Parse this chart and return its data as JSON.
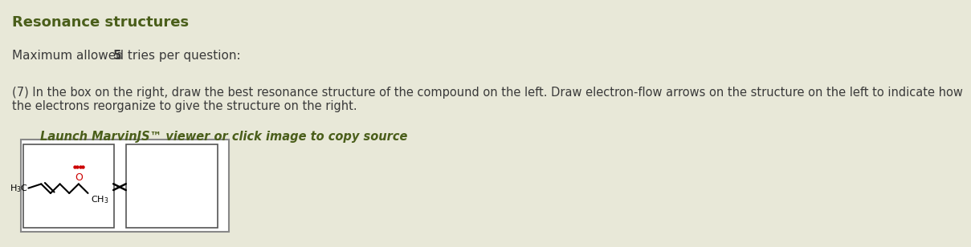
{
  "background_color": "#e8e8d8",
  "title": "Resonance structures",
  "title_color": "#4a5e1a",
  "title_fontsize": 13,
  "title_bold": true,
  "subtitle": "Maximum allowed tries per question: ",
  "subtitle_bold_part": "5",
  "subtitle_fontsize": 11,
  "question_text": "(7) In the box on the right, draw the best resonance structure of the compound on the left. Draw electron-flow arrows on the structure on the left to indicate how\nthe electrons reorganize to give the structure on the right.",
  "question_fontsize": 10.5,
  "link_text": "Launch MarvinJS™ viewer or click image to copy source",
  "link_color": "#4a5e1a",
  "link_fontsize": 10.5,
  "text_color": "#3a3a3a",
  "molecule_color": "#000000",
  "oxygen_color": "#cc0000",
  "arrow_color": "#000000"
}
